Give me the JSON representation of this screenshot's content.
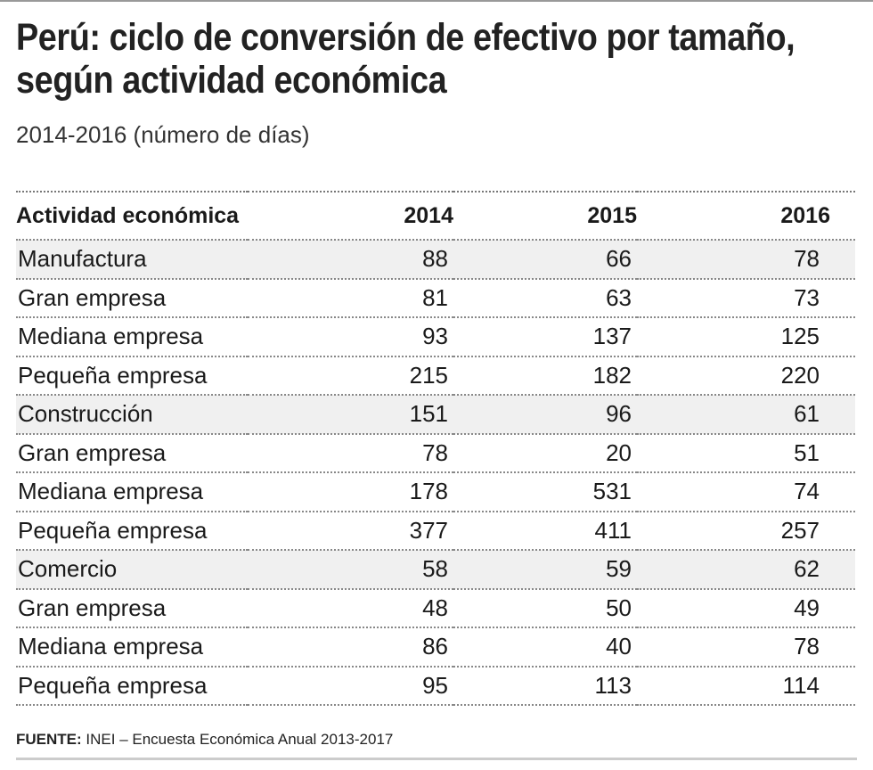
{
  "title": "Perú: ciclo de conversión de efectivo por tamaño, según actividad económica",
  "subtitle": "2014-2016 (número de días)",
  "chart_data": {
    "type": "table",
    "columns": [
      "Actividad económica",
      "2014",
      "2015",
      "2016"
    ],
    "rows": [
      {
        "label": "Manufactura",
        "values": [
          88,
          66,
          78
        ],
        "shaded": true
      },
      {
        "label": "Gran empresa",
        "values": [
          81,
          63,
          73
        ],
        "shaded": false
      },
      {
        "label": "Mediana empresa",
        "values": [
          93,
          137,
          125
        ],
        "shaded": false
      },
      {
        "label": "Pequeña empresa",
        "values": [
          215,
          182,
          220
        ],
        "shaded": false
      },
      {
        "label": "Construcción",
        "values": [
          151,
          96,
          61
        ],
        "shaded": true
      },
      {
        "label": "Gran empresa",
        "values": [
          78,
          20,
          51
        ],
        "shaded": false
      },
      {
        "label": "Mediana empresa",
        "values": [
          178,
          531,
          74
        ],
        "shaded": false
      },
      {
        "label": "Pequeña empresa",
        "values": [
          377,
          411,
          257
        ],
        "shaded": false
      },
      {
        "label": "Comercio",
        "values": [
          58,
          59,
          62
        ],
        "shaded": true
      },
      {
        "label": "Gran empresa",
        "values": [
          48,
          50,
          49
        ],
        "shaded": false
      },
      {
        "label": "Mediana empresa",
        "values": [
          86,
          40,
          78
        ],
        "shaded": false
      },
      {
        "label": "Pequeña empresa",
        "values": [
          95,
          113,
          114
        ],
        "shaded": false
      }
    ]
  },
  "source": {
    "label": "FUENTE:",
    "text": "INEI – Encuesta Económica Anual 2013-2017"
  },
  "colors": {
    "shade": "#f0f0f0",
    "text": "#1a1a1a"
  }
}
